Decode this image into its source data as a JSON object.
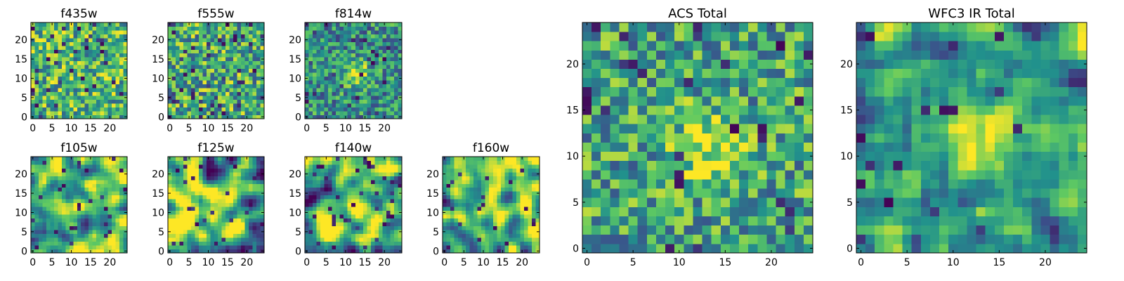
{
  "figure": {
    "colormap": [
      "#440154",
      "#3b528b",
      "#21918c",
      "#5ec962",
      "#fde725"
    ]
  },
  "chart_data": [
    {
      "type": "heatmap",
      "panel": "small",
      "title": "f435w",
      "grid_size": 25,
      "xlim": [
        0,
        24
      ],
      "ylim": [
        0,
        24
      ],
      "xticks": [
        0,
        5,
        10,
        15,
        20
      ],
      "yticks": [
        0,
        5,
        10,
        15,
        20
      ],
      "value_range": [
        0,
        1
      ],
      "background_level": 0.66,
      "noise_level": 0.34,
      "outlier_rate": 0.06,
      "smoothness": 0,
      "seed": 11,
      "source": null
    },
    {
      "type": "heatmap",
      "panel": "small",
      "title": "f555w",
      "grid_size": 25,
      "xlim": [
        0,
        24
      ],
      "ylim": [
        0,
        24
      ],
      "xticks": [
        0,
        5,
        10,
        15,
        20
      ],
      "yticks": [
        0,
        5,
        10,
        15,
        20
      ],
      "value_range": [
        0,
        1
      ],
      "background_level": 0.62,
      "noise_level": 0.36,
      "outlier_rate": 0.06,
      "smoothness": 0,
      "seed": 23,
      "source": null
    },
    {
      "type": "heatmap",
      "panel": "small",
      "title": "f814w",
      "grid_size": 25,
      "xlim": [
        0,
        24
      ],
      "ylim": [
        0,
        24
      ],
      "xticks": [
        0,
        5,
        10,
        15,
        20
      ],
      "yticks": [
        0,
        5,
        10,
        15,
        20
      ],
      "value_range": [
        0,
        1
      ],
      "background_level": 0.5,
      "noise_level": 0.3,
      "outlier_rate": 0.04,
      "smoothness": 0,
      "seed": 37,
      "source": {
        "x": 13,
        "y": 11,
        "sigma": 2.2,
        "amplitude": 0.45
      }
    },
    {
      "type": "heatmap",
      "panel": "small",
      "title": "f105w",
      "grid_size": 25,
      "xlim": [
        0,
        24
      ],
      "ylim": [
        0,
        24
      ],
      "xticks": [
        0,
        5,
        10,
        15,
        20
      ],
      "yticks": [
        0,
        5,
        10,
        15,
        20
      ],
      "value_range": [
        0,
        1
      ],
      "background_level": 0.65,
      "noise_level": 0.45,
      "outlier_rate": 0.05,
      "smoothness": 2,
      "seed": 41,
      "source": {
        "x": 13,
        "y": 12,
        "sigma": 2.5,
        "amplitude": 0.25
      }
    },
    {
      "type": "heatmap",
      "panel": "small",
      "title": "f125w",
      "grid_size": 25,
      "xlim": [
        0,
        24
      ],
      "ylim": [
        0,
        24
      ],
      "xticks": [
        0,
        5,
        10,
        15,
        20
      ],
      "yticks": [
        0,
        5,
        10,
        15,
        20
      ],
      "value_range": [
        0,
        1
      ],
      "background_level": 0.66,
      "noise_level": 0.45,
      "outlier_rate": 0.05,
      "smoothness": 2,
      "seed": 53,
      "source": {
        "x": 13,
        "y": 11,
        "sigma": 2.5,
        "amplitude": 0.2
      }
    },
    {
      "type": "heatmap",
      "panel": "small",
      "title": "f140w",
      "grid_size": 25,
      "xlim": [
        0,
        24
      ],
      "ylim": [
        0,
        24
      ],
      "xticks": [
        0,
        5,
        10,
        15,
        20
      ],
      "yticks": [
        0,
        5,
        10,
        15,
        20
      ],
      "value_range": [
        0,
        1
      ],
      "background_level": 0.65,
      "noise_level": 0.45,
      "outlier_rate": 0.05,
      "smoothness": 2,
      "seed": 67,
      "source": {
        "x": 12,
        "y": 12,
        "sigma": 2.5,
        "amplitude": 0.2
      }
    },
    {
      "type": "heatmap",
      "panel": "small",
      "title": "f160w",
      "grid_size": 25,
      "xlim": [
        0,
        24
      ],
      "ylim": [
        0,
        24
      ],
      "xticks": [
        0,
        5,
        10,
        15,
        20
      ],
      "yticks": [
        0,
        5,
        10,
        15,
        20
      ],
      "value_range": [
        0,
        1
      ],
      "background_level": 0.68,
      "noise_level": 0.42,
      "outlier_rate": 0.04,
      "smoothness": 2,
      "seed": 79,
      "source": {
        "x": 12,
        "y": 13,
        "sigma": 3,
        "amplitude": 0.25
      }
    },
    {
      "type": "heatmap",
      "panel": "large",
      "title": "ACS Total",
      "grid_size": 25,
      "xlim": [
        0,
        24
      ],
      "ylim": [
        0,
        24
      ],
      "xticks": [
        0,
        5,
        10,
        15,
        20
      ],
      "yticks": [
        0,
        5,
        10,
        15,
        20
      ],
      "value_range": [
        0,
        1
      ],
      "background_level": 0.58,
      "noise_level": 0.32,
      "outlier_rate": 0.05,
      "smoothness": 0,
      "seed": 97,
      "source": {
        "x": 13,
        "y": 11,
        "sigma": 2.5,
        "amplitude": 0.35
      }
    },
    {
      "type": "heatmap",
      "panel": "large",
      "title": "WFC3 IR Total",
      "grid_size": 25,
      "xlim": [
        0,
        24
      ],
      "ylim": [
        0,
        24
      ],
      "xticks": [
        0,
        5,
        10,
        15,
        20
      ],
      "yticks": [
        0,
        5,
        10,
        15,
        20
      ],
      "value_range": [
        0,
        1
      ],
      "background_level": 0.55,
      "noise_level": 0.4,
      "outlier_rate": 0.04,
      "smoothness": 1,
      "seed": 113,
      "source": {
        "x": 13,
        "y": 12,
        "sigma": 2.5,
        "amplitude": 0.4
      }
    }
  ]
}
